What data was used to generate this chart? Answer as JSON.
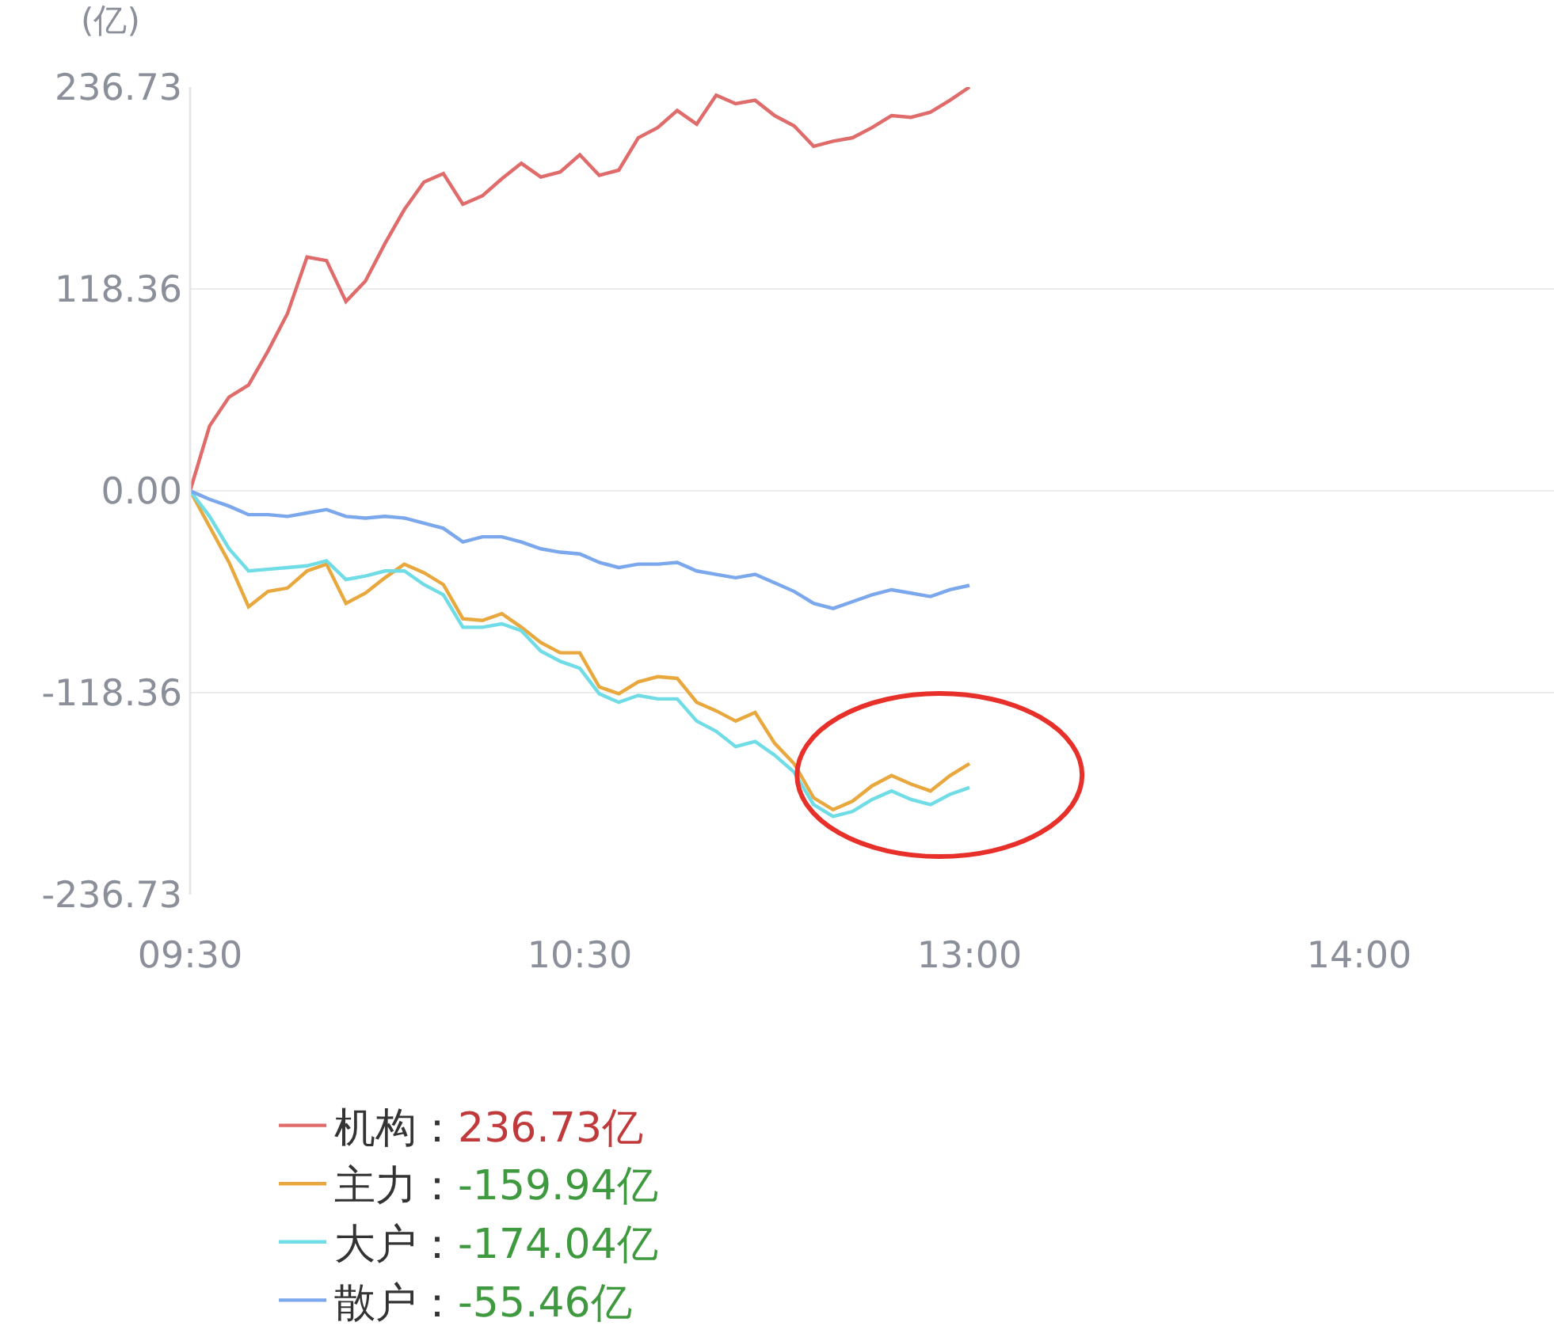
{
  "chart_data": {
    "type": "line",
    "ylabel": "(亿)",
    "categories": [
      "09:30",
      null,
      null,
      null,
      null,
      null,
      null,
      null,
      null,
      null,
      null,
      null,
      null,
      null,
      null,
      null,
      null,
      null,
      null,
      null,
      "10:30",
      null,
      null,
      null,
      null,
      null,
      null,
      null,
      null,
      null,
      null,
      null,
      null,
      null,
      null,
      null,
      null,
      null,
      null,
      null,
      "13:00",
      null,
      null,
      null,
      null,
      null,
      null,
      null,
      null,
      null,
      null,
      null,
      null,
      null,
      null,
      null,
      null,
      null,
      null,
      null,
      "14:00",
      null,
      null,
      null,
      null,
      null,
      null,
      null,
      null,
      null,
      null
    ],
    "ylim": [
      -236.73,
      236.73
    ],
    "yticks": [
      236.73,
      118.36,
      {
        "value": 0,
        "label": "0.00"
      },
      -118.36,
      -236.73
    ],
    "grid": "y",
    "legend": "bottom",
    "marker": "none",
    "line_style": "solid",
    "annotations": [
      "236.73亿",
      "-159.94亿",
      "-174.04亿",
      "-55.46亿"
    ],
    "series": [
      {
        "name": "机构：",
        "color": "#e06b6b",
        "values": [
          0,
          38,
          55,
          62,
          82,
          104,
          137,
          135,
          111,
          123,
          145,
          165,
          181,
          186,
          168,
          173,
          183,
          192,
          184,
          187,
          197,
          185,
          188,
          207,
          213,
          223,
          215,
          232,
          227,
          229,
          220,
          214,
          202,
          205,
          207,
          213,
          220,
          219,
          222,
          229,
          236.73,
          null,
          null,
          null,
          null,
          null,
          null,
          null,
          null,
          null,
          null,
          null,
          null,
          null,
          null,
          null,
          null,
          null,
          null,
          null,
          null,
          null,
          null,
          null,
          null,
          null,
          null,
          null,
          null,
          null,
          null
        ]
      },
      {
        "name": "主力：",
        "color": "#e8a83e",
        "values": [
          0,
          -21,
          -42,
          -68,
          -59,
          -57,
          -47,
          -43,
          -66,
          -60,
          -51,
          -43,
          -48,
          -55,
          -75,
          -76,
          -72,
          -80,
          -89,
          -95,
          -95,
          -115,
          -119,
          -112,
          -109,
          -110,
          -124,
          -129,
          -135,
          -130,
          -148,
          -160,
          -180,
          -187,
          -182,
          -173,
          -167,
          -172,
          -176,
          -167,
          -159.94,
          null,
          null,
          null,
          null,
          null,
          null,
          null,
          null,
          null,
          null,
          null,
          null,
          null,
          null,
          null,
          null,
          null,
          null,
          null,
          null,
          null,
          null,
          null,
          null,
          null,
          null,
          null,
          null,
          null,
          null
        ]
      },
      {
        "name": "大户：",
        "color": "#6fdce6",
        "values": [
          0,
          -15,
          -34,
          -47,
          -46,
          -45,
          -44,
          -41,
          -52,
          -50,
          -47,
          -47,
          -55,
          -61,
          -80,
          -80,
          -78,
          -82,
          -94,
          -100,
          -104,
          -119,
          -124,
          -120,
          -122,
          -122,
          -135,
          -141,
          -150,
          -147,
          -155,
          -165,
          -184,
          -191,
          -188,
          -181,
          -176,
          -181,
          -184,
          -178,
          -174.04,
          null,
          null,
          null,
          null,
          null,
          null,
          null,
          null,
          null,
          null,
          null,
          null,
          null,
          null,
          null,
          null,
          null,
          null,
          null,
          null,
          null,
          null,
          null,
          null,
          null,
          null,
          null,
          null,
          null,
          null
        ]
      },
      {
        "name": "散户：",
        "color": "#7ba7ec",
        "values": [
          0,
          -5,
          -9,
          -14,
          -14,
          -15,
          -13,
          -11,
          -15,
          -16,
          -15,
          -16,
          -19,
          -22,
          -30,
          -27,
          -27,
          -30,
          -34,
          -36,
          -37,
          -42,
          -45,
          -43,
          -43,
          -42,
          -47,
          -49,
          -51,
          -49,
          -54,
          -59,
          -66,
          -69,
          -65,
          -61,
          -58,
          -60,
          -62,
          -58,
          -55.46,
          null,
          null,
          null,
          null,
          null,
          null,
          null,
          null,
          null,
          null,
          null,
          null,
          null,
          null,
          null,
          null,
          null,
          null,
          null,
          null,
          null,
          null,
          null,
          null,
          null,
          null,
          null,
          null,
          null,
          null
        ]
      }
    ]
  }
}
